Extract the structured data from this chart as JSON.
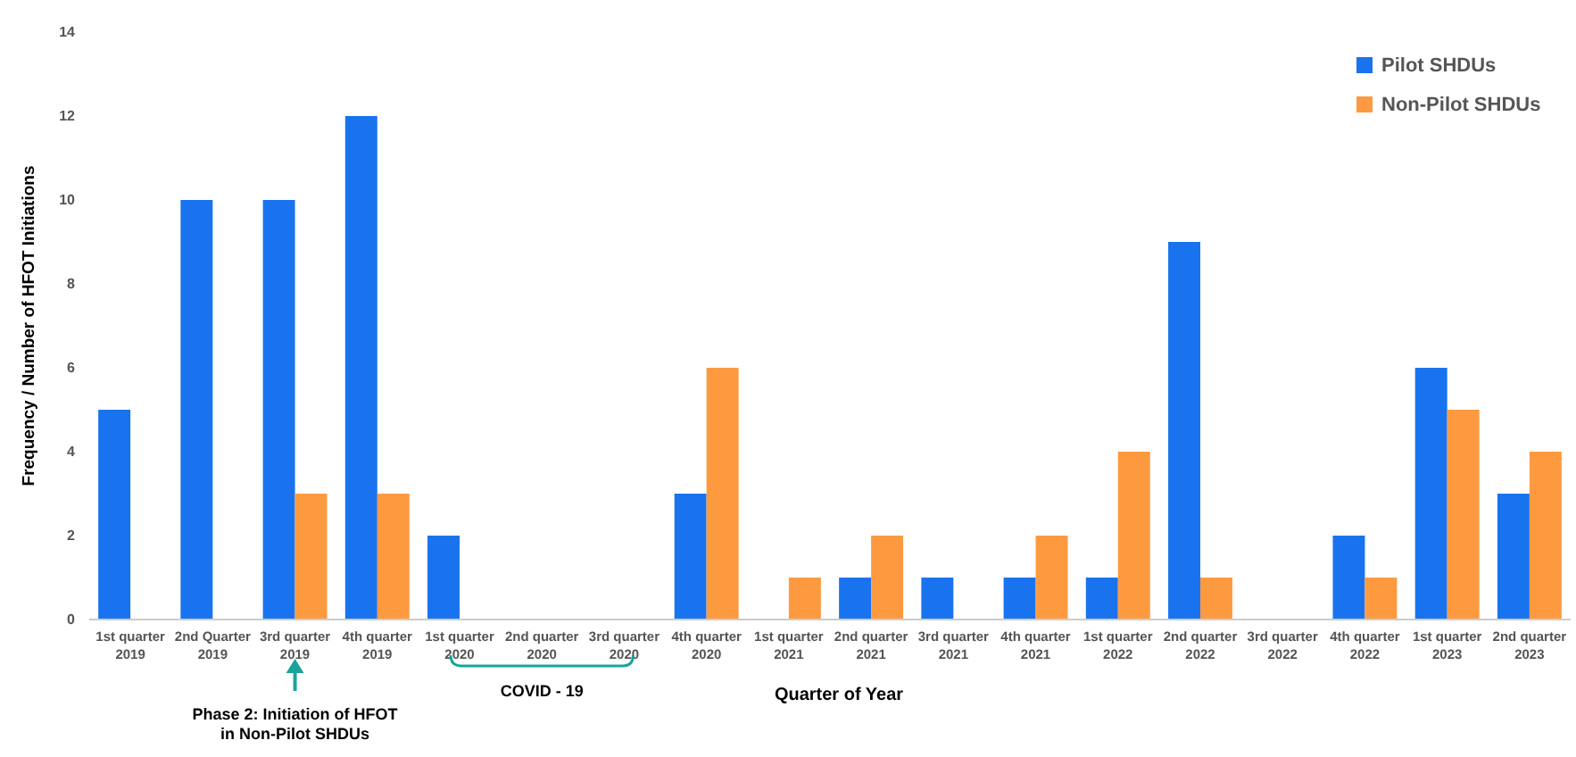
{
  "chart_data": {
    "type": "bar",
    "xlabel": "Quarter of Year",
    "ylabel": "Frequency / Number of HFOT Initiations",
    "categories": [
      "1st quarter 2019",
      "2nd Quarter 2019",
      "3rd quarter 2019",
      "4th quarter 2019",
      "1st quarter 2020",
      "2nd quarter 2020",
      "3rd quarter 2020",
      "4th quarter 2020",
      "1st quarter 2021",
      "2nd quarter 2021",
      "3rd quarter 2021",
      "4th quarter 2021",
      "1st quarter 2022",
      "2nd quarter 2022",
      "3rd quarter 2022",
      "4th quarter 2022",
      "1st quarter 2023",
      "2nd quarter 2023"
    ],
    "series": [
      {
        "name": "Pilot SHDUs",
        "color": "#1a73ee",
        "values": [
          5,
          10,
          10,
          12,
          2,
          0,
          0,
          3,
          0,
          1,
          1,
          1,
          1,
          9,
          0,
          2,
          6,
          3
        ]
      },
      {
        "name": "Non-Pilot SHDUs",
        "color": "#fd9a40",
        "values": [
          0,
          0,
          3,
          3,
          0,
          0,
          0,
          6,
          1,
          2,
          0,
          2,
          4,
          1,
          0,
          1,
          5,
          4
        ]
      }
    ],
    "ylim": [
      0,
      14
    ],
    "yticks": [
      0,
      2,
      4,
      6,
      8,
      10,
      12,
      14
    ],
    "grid": false,
    "legend": "top right",
    "annotations": [
      "Phase 2: Initiation of HFOT in Non-Pilot SHDUs",
      "COVID - 19"
    ]
  }
}
